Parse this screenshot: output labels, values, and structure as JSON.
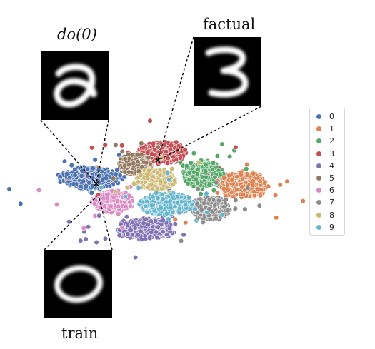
{
  "chart_data": {
    "type": "scatter",
    "title": "",
    "xlabel": "",
    "ylabel": "",
    "axes_visible": false,
    "grid": false,
    "legend_placement": "right",
    "legend_labels": [
      "0",
      "1",
      "2",
      "3",
      "4",
      "5",
      "6",
      "7",
      "8",
      "9"
    ],
    "palette": [
      "#4c72b0",
      "#dd8452",
      "#55a868",
      "#c44e52",
      "#8172b3",
      "#937860",
      "#da8bc3",
      "#8c8c8c",
      "#ccb974",
      "#64b5cd"
    ],
    "xlim": [
      -60,
      60
    ],
    "ylim": [
      -60,
      60
    ],
    "series": [
      {
        "label": "0",
        "center": [
          -37,
          8
        ],
        "spread": [
          8,
          4
        ]
      },
      {
        "label": "1",
        "center": [
          37,
          3
        ],
        "spread": [
          6,
          5
        ]
      },
      {
        "label": "2",
        "center": [
          18,
          11
        ],
        "spread": [
          5,
          5
        ]
      },
      {
        "label": "3",
        "center": [
          -2,
          27
        ],
        "spread": [
          6,
          4
        ]
      },
      {
        "label": "4",
        "center": [
          -10,
          -29
        ],
        "spread": [
          7,
          4
        ]
      },
      {
        "label": "5",
        "center": [
          -15,
          18
        ],
        "spread": [
          4,
          4
        ]
      },
      {
        "label": "6",
        "center": [
          -26,
          -9
        ],
        "spread": [
          5,
          4
        ]
      },
      {
        "label": "7",
        "center": [
          22,
          -14
        ],
        "spread": [
          5,
          4
        ]
      },
      {
        "label": "8",
        "center": [
          -5,
          7
        ],
        "spread": [
          5,
          4
        ]
      },
      {
        "label": "9",
        "center": [
          0,
          -11
        ],
        "spread": [
          7,
          4
        ]
      }
    ],
    "annotations": [
      {
        "label": "do(0)",
        "digit_shown": 0,
        "point": [
          -34,
          4
        ]
      },
      {
        "label": "factual",
        "digit_shown": 3,
        "point": [
          -4,
          21
        ]
      },
      {
        "label": "train",
        "digit_shown": 0,
        "point": [
          -33,
          -4
        ]
      }
    ]
  }
}
